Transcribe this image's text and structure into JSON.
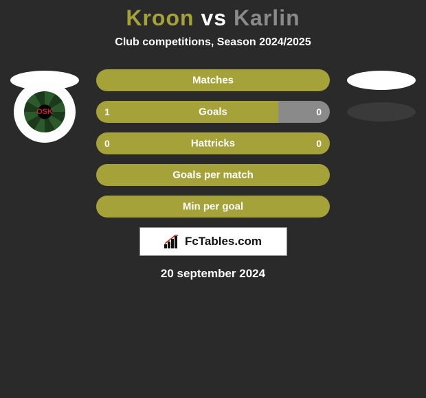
{
  "title": {
    "player1": "Kroon",
    "vs": "vs",
    "player2": "Karlin",
    "player1_color": "#a5a23a",
    "vs_color": "#ffffff",
    "player2_color": "#8a8a8a"
  },
  "subtitle": "Club competitions, Season 2024/2025",
  "colors": {
    "background": "#2a2a2a",
    "bar_left": "#a5a23a",
    "bar_right": "#8a8a8a",
    "bar_text": "#ffffff",
    "oval_white": "#ffffff",
    "oval_dark": "#3a3a3a"
  },
  "bars": [
    {
      "label": "Matches",
      "left_value": null,
      "right_value": null,
      "left_pct": 100,
      "right_pct": 0
    },
    {
      "label": "Goals",
      "left_value": "1",
      "right_value": "0",
      "left_pct": 78,
      "right_pct": 22
    },
    {
      "label": "Hattricks",
      "left_value": "0",
      "right_value": "0",
      "left_pct": 100,
      "right_pct": 0
    },
    {
      "label": "Goals per match",
      "left_value": null,
      "right_value": null,
      "left_pct": 100,
      "right_pct": 0
    },
    {
      "label": "Min per goal",
      "left_value": null,
      "right_value": null,
      "left_pct": 100,
      "right_pct": 0
    }
  ],
  "brand": {
    "text": "FcTables.com"
  },
  "date": "20 september 2024",
  "left_badge_label": "OSK"
}
